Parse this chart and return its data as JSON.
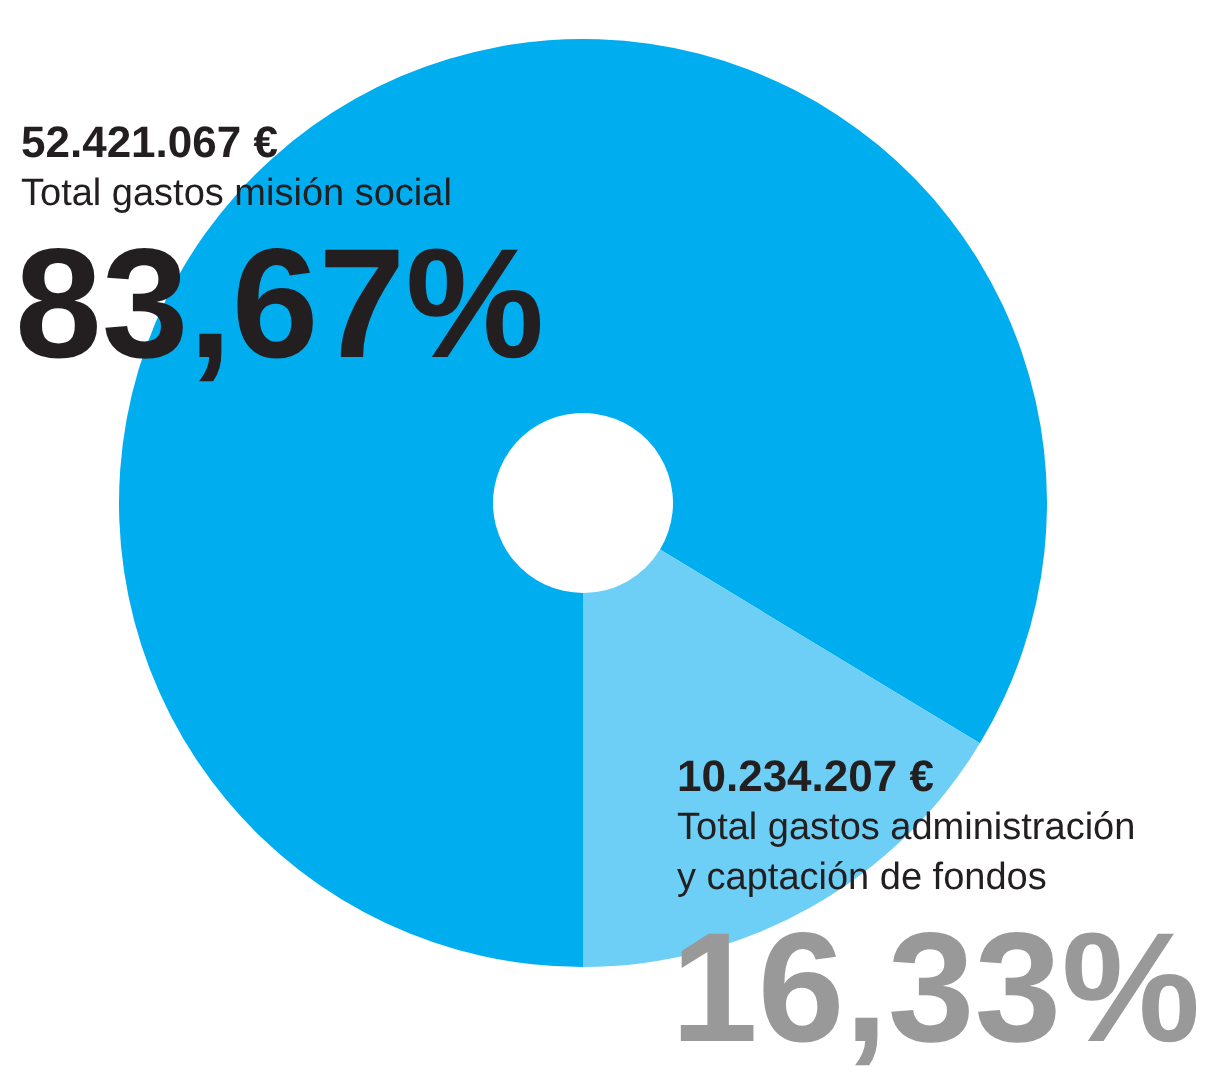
{
  "chart_data": {
    "type": "donut",
    "categories": [
      "Total gastos misión social",
      "Total gastos administración y captación de fondos"
    ],
    "values": [
      52421067,
      10234207
    ],
    "colors": [
      "#00aeef",
      "#6dcff6"
    ],
    "value_labels": [
      "52.421.067 €",
      "10.234.207 €"
    ],
    "annotations": [
      "83,67%",
      "16,33%"
    ]
  }
}
